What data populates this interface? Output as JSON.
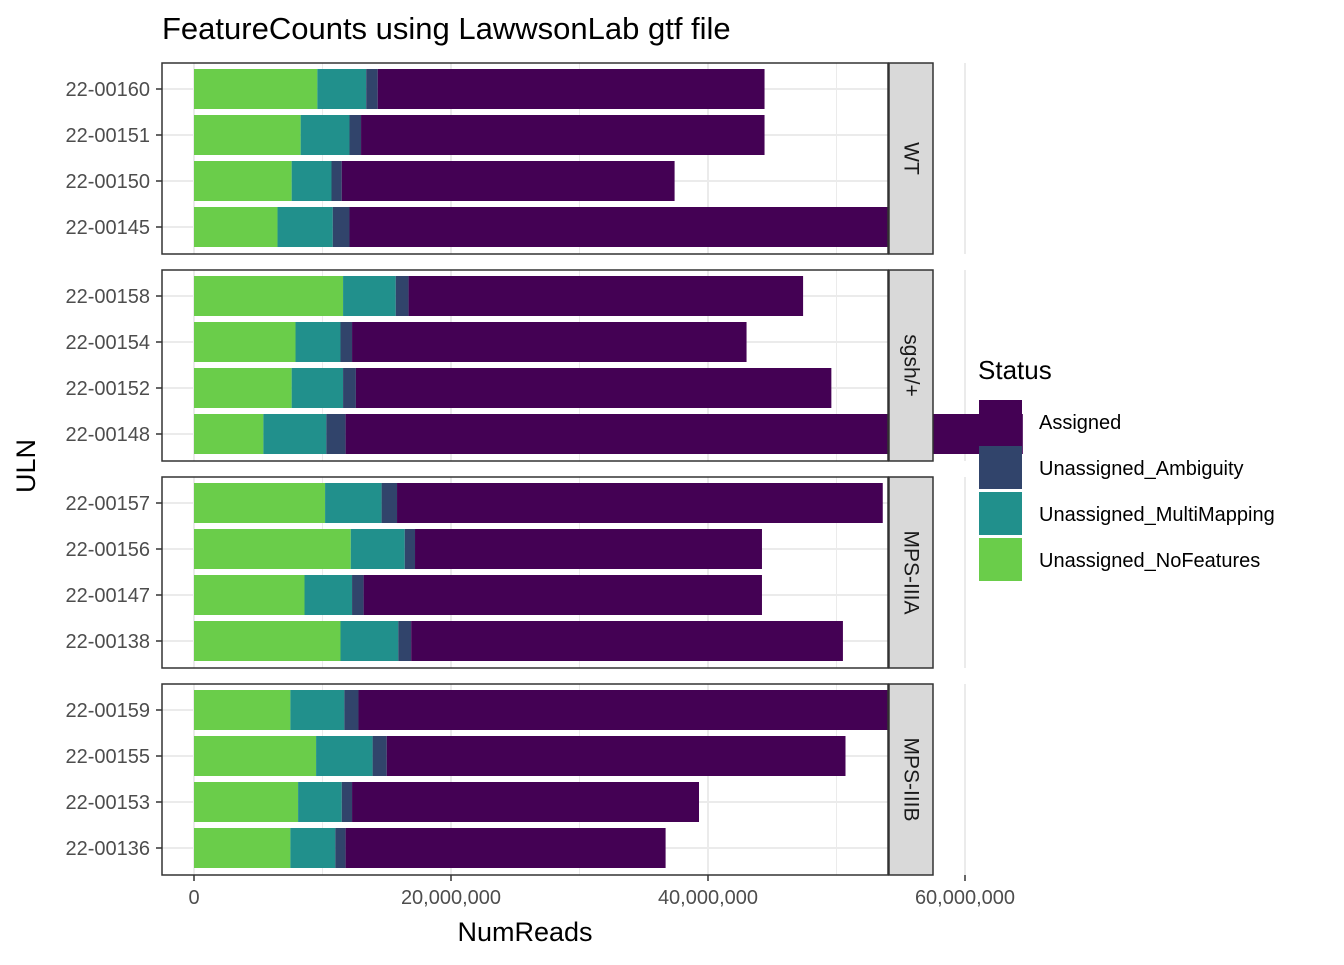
{
  "chart_data": {
    "type": "bar",
    "orientation": "horizontal",
    "stacked": true,
    "title": "FeatureCounts using LawwsonLab gtf file",
    "xlabel": "NumReads",
    "ylabel": "ULN",
    "xlim": [
      0,
      68000000
    ],
    "x_ticks": [
      0,
      20000000,
      40000000,
      60000000
    ],
    "x_tick_labels": [
      "0",
      "20,000,000",
      "40,000,000",
      "60,000,000"
    ],
    "grid": true,
    "legend": {
      "title": "Status",
      "position": "right",
      "entries": [
        "Assigned",
        "Unassigned_Ambiguity",
        "Unassigned_MultiMapping",
        "Unassigned_NoFeatures"
      ]
    },
    "colors": {
      "Assigned": "#440154",
      "Unassigned_Ambiguity": "#31446B",
      "Unassigned_MultiMapping": "#21908C",
      "Unassigned_NoFeatures": "#6ACD4A"
    },
    "stack_order": [
      "Unassigned_NoFeatures",
      "Unassigned_MultiMapping",
      "Unassigned_Ambiguity",
      "Assigned"
    ],
    "facets": [
      {
        "label": "WT",
        "samples": [
          {
            "uln": "22-00160",
            "Unassigned_NoFeatures": 9600000,
            "Unassigned_MultiMapping": 3800000,
            "Unassigned_Ambiguity": 900000,
            "Assigned": 30100000
          },
          {
            "uln": "22-00151",
            "Unassigned_NoFeatures": 8300000,
            "Unassigned_MultiMapping": 3800000,
            "Unassigned_Ambiguity": 900000,
            "Assigned": 31400000
          },
          {
            "uln": "22-00150",
            "Unassigned_NoFeatures": 7600000,
            "Unassigned_MultiMapping": 3100000,
            "Unassigned_Ambiguity": 800000,
            "Assigned": 25900000
          },
          {
            "uln": "22-00145",
            "Unassigned_NoFeatures": 6500000,
            "Unassigned_MultiMapping": 4300000,
            "Unassigned_Ambiguity": 1300000,
            "Assigned": 44900000
          }
        ]
      },
      {
        "label": "sgsh/+",
        "samples": [
          {
            "uln": "22-00158",
            "Unassigned_NoFeatures": 11600000,
            "Unassigned_MultiMapping": 4100000,
            "Unassigned_Ambiguity": 1000000,
            "Assigned": 30700000
          },
          {
            "uln": "22-00154",
            "Unassigned_NoFeatures": 7900000,
            "Unassigned_MultiMapping": 3500000,
            "Unassigned_Ambiguity": 900000,
            "Assigned": 30700000
          },
          {
            "uln": "22-00152",
            "Unassigned_NoFeatures": 7600000,
            "Unassigned_MultiMapping": 4000000,
            "Unassigned_Ambiguity": 1000000,
            "Assigned": 37000000
          },
          {
            "uln": "22-00148",
            "Unassigned_NoFeatures": 5400000,
            "Unassigned_MultiMapping": 4900000,
            "Unassigned_Ambiguity": 1500000,
            "Assigned": 52700000
          }
        ]
      },
      {
        "label": "MPS-IIIA",
        "samples": [
          {
            "uln": "22-00157",
            "Unassigned_NoFeatures": 10200000,
            "Unassigned_MultiMapping": 4400000,
            "Unassigned_Ambiguity": 1200000,
            "Assigned": 37800000
          },
          {
            "uln": "22-00156",
            "Unassigned_NoFeatures": 12200000,
            "Unassigned_MultiMapping": 4200000,
            "Unassigned_Ambiguity": 800000,
            "Assigned": 27000000
          },
          {
            "uln": "22-00147",
            "Unassigned_NoFeatures": 8600000,
            "Unassigned_MultiMapping": 3700000,
            "Unassigned_Ambiguity": 900000,
            "Assigned": 31000000
          },
          {
            "uln": "22-00138",
            "Unassigned_NoFeatures": 11400000,
            "Unassigned_MultiMapping": 4500000,
            "Unassigned_Ambiguity": 1000000,
            "Assigned": 33600000
          }
        ]
      },
      {
        "label": "MPS-IIIB",
        "samples": [
          {
            "uln": "22-00159",
            "Unassigned_NoFeatures": 7500000,
            "Unassigned_MultiMapping": 4200000,
            "Unassigned_Ambiguity": 1100000,
            "Assigned": 41700000
          },
          {
            "uln": "22-00155",
            "Unassigned_NoFeatures": 9500000,
            "Unassigned_MultiMapping": 4400000,
            "Unassigned_Ambiguity": 1100000,
            "Assigned": 35700000
          },
          {
            "uln": "22-00153",
            "Unassigned_NoFeatures": 8100000,
            "Unassigned_MultiMapping": 3400000,
            "Unassigned_Ambiguity": 800000,
            "Assigned": 27000000
          },
          {
            "uln": "22-00136",
            "Unassigned_NoFeatures": 7500000,
            "Unassigned_MultiMapping": 3500000,
            "Unassigned_Ambiguity": 800000,
            "Assigned": 24900000
          }
        ]
      }
    ]
  }
}
